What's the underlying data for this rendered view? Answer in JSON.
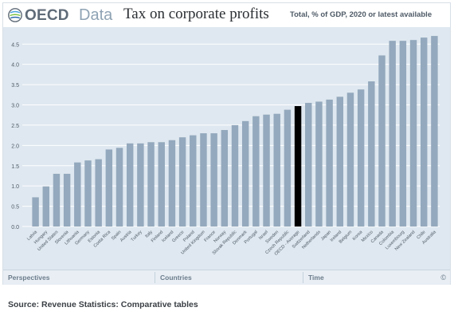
{
  "header": {
    "logo_text": "OECD",
    "data_text": "Data",
    "title": "Tax on corporate profits",
    "subtitle": "Total, % of GDP, 2020 or latest available"
  },
  "tabs": [
    {
      "label": "Perspectives"
    },
    {
      "label": "Countries"
    },
    {
      "label": "Time"
    }
  ],
  "copyright": "©",
  "source": "Source: Revenue Statistics: Comparative tables",
  "colors": {
    "bar": "#94a9bd",
    "highlight": "#000000",
    "plot_bg": "#dfe8f0",
    "grid": "#ffffff"
  },
  "chart_data": {
    "type": "bar",
    "title": "Tax on corporate profits",
    "subtitle": "Total, % of GDP, 2020 or latest available",
    "xlabel": "",
    "ylabel": "",
    "ylim": [
      0,
      4.8
    ],
    "yticks": [
      0.0,
      0.5,
      1.0,
      1.5,
      2.0,
      2.5,
      3.0,
      3.5,
      4.0,
      4.5
    ],
    "ytick_labels": [
      "0.0",
      "0.5",
      "1.0",
      "1.5",
      "2.0",
      "2.5",
      "3.0",
      "3.5",
      "4.0",
      "4.5"
    ],
    "grid": true,
    "highlight_category": "OECD - Average",
    "categories": [
      "Latvia",
      "Hungary",
      "United States",
      "Slovenia",
      "Lithuania",
      "Germany",
      "Estonia",
      "Costa Rica",
      "Spain",
      "Austria",
      "Turkey",
      "Italy",
      "Finland",
      "Iceland",
      "Greece",
      "Poland",
      "United Kingdom",
      "France",
      "Norway",
      "Slovak Republic",
      "Denmark",
      "Portugal",
      "Israel",
      "Sweden",
      "Czech Republic",
      "OECD - Average",
      "Switzerland",
      "Netherlands",
      "Japan",
      "Ireland",
      "Belgium",
      "Korea",
      "Mexico",
      "Canada",
      "Colombia",
      "Luxembourg",
      "New Zealand",
      "Chile",
      "Australia"
    ],
    "values": [
      0.72,
      0.99,
      1.3,
      1.3,
      1.58,
      1.63,
      1.66,
      1.9,
      1.94,
      2.05,
      2.05,
      2.08,
      2.08,
      2.13,
      2.2,
      2.25,
      2.3,
      2.3,
      2.38,
      2.5,
      2.6,
      2.72,
      2.76,
      2.78,
      2.88,
      2.97,
      3.05,
      3.08,
      3.13,
      3.2,
      3.3,
      3.38,
      3.58,
      4.22,
      4.58,
      4.58,
      4.6,
      4.66,
      4.7
    ]
  }
}
